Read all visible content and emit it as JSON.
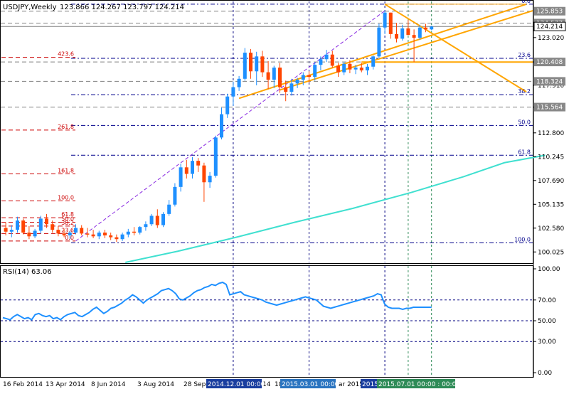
{
  "header": {
    "symbol": "USDJPY,Weekly",
    "ohlc": "123.866 124.267 123.797 124.214"
  },
  "colors": {
    "background": "#ffffff",
    "frame": "#000000",
    "bull_candle": "#1e90ff",
    "bear_candle": "#ff4500",
    "moving_average": "#40e0d0",
    "channel": "#ffa500",
    "fib_red": "#cc0000",
    "fib_blue": "#00008b",
    "rsi_line": "#1e90ff",
    "grid": "#000080",
    "price_label_bg": "#888888",
    "date_highlight_bg": "#1a3e9f",
    "date_highlight_bg2": "#2a74c0"
  },
  "price_axis": {
    "ticks": [
      "123.020",
      "120.408",
      "117.910",
      "115.564",
      "112.800",
      "110.245",
      "107.690",
      "105.135",
      "102.580",
      "100.025"
    ],
    "tags": [
      {
        "value": "125.853",
        "kind": "level"
      },
      {
        "value": "124.577",
        "kind": "level"
      },
      {
        "value": "124.214",
        "kind": "current"
      },
      {
        "value": "120.408",
        "kind": "level"
      },
      {
        "value": "118.324",
        "kind": "level"
      },
      {
        "value": "115.564",
        "kind": "level"
      }
    ]
  },
  "fibo_labels_right": [
    {
      "text": "0.0",
      "price": 126.6
    },
    {
      "text": "23.6",
      "price": 120.8
    },
    {
      "text": "38.2",
      "price": 116.9
    },
    {
      "text": "50.0",
      "price": 113.6
    },
    {
      "text": "61.8",
      "price": 110.4
    },
    {
      "text": "100.0",
      "price": 101.0
    }
  ],
  "fibo_labels_left": [
    {
      "text": "423.6",
      "price": 120.9
    },
    {
      "text": "261.8",
      "price": 113.1
    },
    {
      "text": "161.8",
      "price": 108.4
    },
    {
      "text": "100.0",
      "price": 105.5
    },
    {
      "text": "61.8",
      "price": 103.7
    },
    {
      "text": "50.0",
      "price": 103.2
    },
    {
      "text": "38.2",
      "price": 102.8
    },
    {
      "text": "23.6",
      "price": 102.0
    },
    {
      "text": "0.0",
      "price": 101.2
    }
  ],
  "rsi": {
    "label": "RSI(14) 63.06",
    "ticks": [
      "100.00",
      "70.00",
      "50.00",
      "30.00",
      "0.00"
    ],
    "values": [
      53,
      52,
      51,
      54,
      56,
      54,
      52,
      53,
      51,
      56,
      57,
      55,
      54,
      55,
      52,
      53,
      51,
      54,
      56,
      57,
      58,
      55,
      54,
      56,
      58,
      61,
      63,
      60,
      57,
      59,
      62,
      63,
      65,
      67,
      70,
      72,
      75,
      73,
      70,
      67,
      70,
      72,
      74,
      76,
      79,
      80,
      81,
      79,
      76,
      71,
      70,
      72,
      74,
      77,
      79,
      80,
      82,
      83,
      85,
      84,
      86,
      87,
      85,
      75,
      76,
      77,
      78,
      75,
      74,
      73,
      72,
      71,
      70,
      68,
      67,
      66,
      65,
      66,
      67,
      68,
      69,
      70,
      71,
      72,
      73,
      72,
      71,
      70,
      67,
      64,
      63,
      62,
      63,
      64,
      65,
      66,
      67,
      68,
      69,
      70,
      71,
      72,
      73,
      74,
      76,
      75,
      66,
      63,
      62,
      62,
      62,
      61,
      62,
      62,
      63,
      63,
      63,
      63,
      63,
      63
    ]
  },
  "time_axis": {
    "labels": [
      "16 Feb 2014",
      "13 Apr 2014",
      "8 Jun 2014",
      "3 Aug 2014",
      "28 Sep 2014",
      "14",
      "18",
      "ar 2015"
    ],
    "highlights": [
      "2014.12.01 00:00",
      "2015.03.01 00:00",
      "2015",
      "2015.07.01 00:00 : 00:00"
    ]
  },
  "chart_data": {
    "type": "candlestick",
    "title": "USDJPY,Weekly",
    "timeframe": "Weekly",
    "ylim": [
      98.9,
      126.9
    ],
    "x_range": [
      "2014-02-10",
      "2015-07-20"
    ],
    "last": {
      "open": 123.866,
      "high": 124.267,
      "low": 123.797,
      "close": 124.214
    },
    "candles": [
      {
        "o": 102.6,
        "h": 103.2,
        "l": 101.8,
        "c": 102.2
      },
      {
        "o": 102.2,
        "h": 102.9,
        "l": 101.6,
        "c": 102.4
      },
      {
        "o": 102.4,
        "h": 103.8,
        "l": 102.1,
        "c": 103.4
      },
      {
        "o": 103.4,
        "h": 103.6,
        "l": 101.9,
        "c": 102.1
      },
      {
        "o": 102.1,
        "h": 102.8,
        "l": 101.4,
        "c": 101.7
      },
      {
        "o": 101.7,
        "h": 102.5,
        "l": 101.5,
        "c": 102.3
      },
      {
        "o": 102.3,
        "h": 103.9,
        "l": 102.0,
        "c": 103.6
      },
      {
        "o": 103.6,
        "h": 104.1,
        "l": 102.6,
        "c": 103.0
      },
      {
        "o": 103.0,
        "h": 103.4,
        "l": 102.1,
        "c": 102.4
      },
      {
        "o": 102.4,
        "h": 102.8,
        "l": 101.7,
        "c": 102.0
      },
      {
        "o": 102.0,
        "h": 102.5,
        "l": 101.6,
        "c": 101.8
      },
      {
        "o": 101.8,
        "h": 102.3,
        "l": 101.4,
        "c": 102.1
      },
      {
        "o": 102.1,
        "h": 103.0,
        "l": 101.9,
        "c": 102.6
      },
      {
        "o": 102.6,
        "h": 102.9,
        "l": 101.8,
        "c": 102.0
      },
      {
        "o": 102.0,
        "h": 102.6,
        "l": 101.6,
        "c": 101.9
      },
      {
        "o": 101.9,
        "h": 102.4,
        "l": 101.5,
        "c": 101.7
      },
      {
        "o": 101.7,
        "h": 102.3,
        "l": 101.4,
        "c": 102.1
      },
      {
        "o": 102.1,
        "h": 102.4,
        "l": 101.5,
        "c": 101.8
      },
      {
        "o": 101.8,
        "h": 102.1,
        "l": 101.3,
        "c": 101.6
      },
      {
        "o": 101.6,
        "h": 101.9,
        "l": 101.1,
        "c": 101.4
      },
      {
        "o": 101.4,
        "h": 102.1,
        "l": 101.2,
        "c": 101.9
      },
      {
        "o": 101.9,
        "h": 102.5,
        "l": 101.6,
        "c": 102.2
      },
      {
        "o": 102.2,
        "h": 102.7,
        "l": 101.8,
        "c": 102.1
      },
      {
        "o": 102.1,
        "h": 102.8,
        "l": 101.9,
        "c": 102.7
      },
      {
        "o": 102.7,
        "h": 103.3,
        "l": 102.3,
        "c": 103.0
      },
      {
        "o": 103.0,
        "h": 104.1,
        "l": 102.8,
        "c": 103.9
      },
      {
        "o": 103.9,
        "h": 104.6,
        "l": 102.6,
        "c": 102.9
      },
      {
        "o": 102.9,
        "h": 104.3,
        "l": 102.7,
        "c": 104.1
      },
      {
        "o": 104.1,
        "h": 105.6,
        "l": 103.9,
        "c": 105.1
      },
      {
        "o": 105.1,
        "h": 107.4,
        "l": 104.9,
        "c": 107.0
      },
      {
        "o": 107.0,
        "h": 109.5,
        "l": 106.5,
        "c": 109.1
      },
      {
        "o": 109.1,
        "h": 109.9,
        "l": 107.9,
        "c": 108.4
      },
      {
        "o": 108.4,
        "h": 110.2,
        "l": 107.9,
        "c": 109.8
      },
      {
        "o": 109.8,
        "h": 110.1,
        "l": 108.6,
        "c": 109.3
      },
      {
        "o": 109.3,
        "h": 109.6,
        "l": 105.4,
        "c": 107.5
      },
      {
        "o": 107.5,
        "h": 108.6,
        "l": 106.9,
        "c": 108.2
      },
      {
        "o": 108.2,
        "h": 112.5,
        "l": 108.0,
        "c": 112.3
      },
      {
        "o": 112.3,
        "h": 115.5,
        "l": 112.1,
        "c": 114.8
      },
      {
        "o": 114.8,
        "h": 117.0,
        "l": 114.4,
        "c": 116.7
      },
      {
        "o": 116.7,
        "h": 118.3,
        "l": 115.7,
        "c": 117.7
      },
      {
        "o": 117.7,
        "h": 118.9,
        "l": 117.3,
        "c": 118.6
      },
      {
        "o": 118.6,
        "h": 121.9,
        "l": 118.4,
        "c": 121.4
      },
      {
        "o": 121.4,
        "h": 121.8,
        "l": 118.6,
        "c": 119.4
      },
      {
        "o": 119.4,
        "h": 121.5,
        "l": 117.9,
        "c": 121.0
      },
      {
        "o": 121.0,
        "h": 121.6,
        "l": 118.8,
        "c": 119.3
      },
      {
        "o": 119.3,
        "h": 120.5,
        "l": 117.5,
        "c": 118.5
      },
      {
        "o": 118.5,
        "h": 120.0,
        "l": 117.6,
        "c": 119.8
      },
      {
        "o": 119.8,
        "h": 120.3,
        "l": 117.1,
        "c": 117.7
      },
      {
        "o": 117.7,
        "h": 118.4,
        "l": 116.2,
        "c": 117.2
      },
      {
        "o": 117.2,
        "h": 118.6,
        "l": 116.8,
        "c": 118.1
      },
      {
        "o": 118.1,
        "h": 118.7,
        "l": 117.6,
        "c": 118.5
      },
      {
        "o": 118.5,
        "h": 119.3,
        "l": 117.9,
        "c": 119.0
      },
      {
        "o": 119.0,
        "h": 119.4,
        "l": 118.2,
        "c": 118.8
      },
      {
        "o": 118.8,
        "h": 120.4,
        "l": 118.4,
        "c": 120.1
      },
      {
        "o": 120.1,
        "h": 121.0,
        "l": 119.5,
        "c": 120.7
      },
      {
        "o": 120.7,
        "h": 121.7,
        "l": 120.4,
        "c": 121.2
      },
      {
        "o": 121.2,
        "h": 121.6,
        "l": 119.8,
        "c": 120.0
      },
      {
        "o": 120.0,
        "h": 120.3,
        "l": 118.8,
        "c": 119.3
      },
      {
        "o": 119.3,
        "h": 120.4,
        "l": 119.0,
        "c": 120.2
      },
      {
        "o": 120.2,
        "h": 120.6,
        "l": 119.2,
        "c": 119.6
      },
      {
        "o": 119.6,
        "h": 120.1,
        "l": 119.1,
        "c": 119.8
      },
      {
        "o": 119.8,
        "h": 120.3,
        "l": 119.3,
        "c": 119.5
      },
      {
        "o": 119.5,
        "h": 120.2,
        "l": 119.0,
        "c": 119.9
      },
      {
        "o": 119.9,
        "h": 121.1,
        "l": 119.6,
        "c": 121.0
      },
      {
        "o": 121.0,
        "h": 124.5,
        "l": 120.8,
        "c": 124.1
      },
      {
        "o": 124.1,
        "h": 125.9,
        "l": 123.4,
        "c": 125.7
      },
      {
        "o": 125.7,
        "h": 125.7,
        "l": 122.9,
        "c": 123.4
      },
      {
        "o": 123.4,
        "h": 124.6,
        "l": 122.5,
        "c": 122.9
      },
      {
        "o": 122.9,
        "h": 124.4,
        "l": 122.7,
        "c": 124.0
      },
      {
        "o": 124.0,
        "h": 124.9,
        "l": 123.3,
        "c": 123.3
      },
      {
        "o": 123.3,
        "h": 123.9,
        "l": 120.4,
        "c": 123.0
      },
      {
        "o": 123.0,
        "h": 124.4,
        "l": 122.8,
        "c": 124.1
      },
      {
        "o": 124.1,
        "h": 124.5,
        "l": 123.6,
        "c": 123.9
      },
      {
        "o": 123.9,
        "h": 124.3,
        "l": 123.8,
        "c": 124.2
      }
    ],
    "ma": {
      "color": "#40e0d0",
      "points": [
        [
          21,
          98.9
        ],
        [
          30,
          100.1
        ],
        [
          40,
          101.6
        ],
        [
          50,
          103.2
        ],
        [
          60,
          104.7
        ],
        [
          70,
          106.4
        ],
        [
          79,
          108.1
        ],
        [
          86,
          109.6
        ],
        [
          93,
          110.4
        ]
      ]
    },
    "rsi": {
      "name": "RSI(14)",
      "last": 63.06,
      "ylim": [
        0,
        100
      ],
      "levels": [
        70,
        50,
        30
      ]
    }
  }
}
